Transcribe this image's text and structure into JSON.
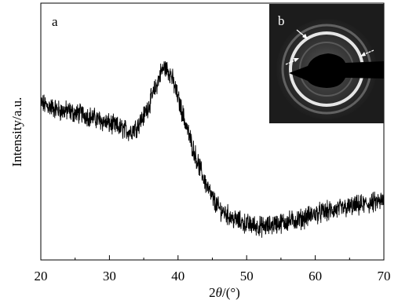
{
  "figure": {
    "panel_a": "a",
    "panel_b": "b"
  },
  "chart_data": {
    "type": "line",
    "xlabel_prefix": "2",
    "xlabel_var": "θ",
    "xlabel_suffix": "/(°)",
    "ylabel": "Intensity/a.u.",
    "xlim": [
      20,
      70
    ],
    "xticks": [
      20,
      30,
      40,
      50,
      60,
      70
    ],
    "y_ticklabels": false,
    "grid": false,
    "series": [
      {
        "x": [
          20,
          21,
          22,
          23,
          24,
          25,
          26,
          27,
          28,
          29,
          30,
          31,
          32,
          33,
          34,
          35,
          36,
          37,
          37.5,
          38,
          38.5,
          39,
          40,
          41,
          42,
          43,
          44,
          45,
          46,
          47,
          48,
          50,
          52,
          53,
          54,
          56,
          58,
          60,
          62,
          64,
          66,
          68,
          70
        ],
        "y": [
          0.61,
          0.6,
          0.59,
          0.58,
          0.58,
          0.57,
          0.57,
          0.56,
          0.55,
          0.54,
          0.53,
          0.52,
          0.51,
          0.5,
          0.52,
          0.56,
          0.62,
          0.69,
          0.73,
          0.75,
          0.74,
          0.72,
          0.63,
          0.54,
          0.45,
          0.37,
          0.3,
          0.24,
          0.2,
          0.18,
          0.16,
          0.14,
          0.13,
          0.13,
          0.14,
          0.15,
          0.16,
          0.18,
          0.19,
          0.2,
          0.21,
          0.22,
          0.23
        ]
      }
    ]
  },
  "inset": {
    "type": "electron-diffraction-pattern"
  }
}
